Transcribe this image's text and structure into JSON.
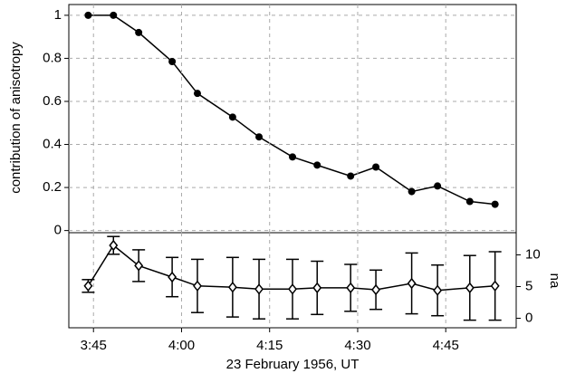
{
  "chart_data": [
    {
      "type": "line",
      "ylabel": "contribution of anisotropy",
      "x": [
        224.1,
        228.4,
        232.7,
        238.4,
        242.7,
        248.7,
        253.2,
        258.9,
        263.1,
        268.8,
        273.1,
        279.2,
        283.6,
        289.1,
        293.4
      ],
      "xlim": [
        220.8,
        297
      ],
      "ylim": [
        -0.01,
        1.05
      ],
      "yticks": [
        0,
        0.2,
        0.4,
        0.6,
        0.8,
        1
      ],
      "grid": true,
      "series": [
        {
          "color": "#000000",
          "marker": "circle",
          "values": [
            1,
            1,
            0.92,
            0.785,
            0.637,
            0.527,
            0.435,
            0.342,
            0.304,
            0.253,
            0.295,
            0.181,
            0.207,
            0.135,
            0.122
          ]
        }
      ]
    },
    {
      "type": "line",
      "xlabel": "23 February 1956, UT",
      "y2label": "na",
      "x": [
        224.1,
        228.4,
        232.7,
        238.4,
        242.7,
        248.7,
        253.2,
        258.9,
        263.1,
        268.8,
        273.1,
        279.2,
        283.6,
        289.1,
        293.4
      ],
      "xlim": [
        220.8,
        297
      ],
      "xticks": [
        {
          "value": 225,
          "label": "3:45"
        },
        {
          "value": 240,
          "label": "4:00"
        },
        {
          "value": 255,
          "label": "4:15"
        },
        {
          "value": 270,
          "label": "4:30"
        },
        {
          "value": 285,
          "label": "4:45"
        }
      ],
      "y2lim": [
        -1.5,
        13.5
      ],
      "y2ticks": [
        0,
        5,
        10
      ],
      "grid": true,
      "series": [
        {
          "color": "#000000",
          "marker": "diamond",
          "axis": "y2",
          "values": [
            5.1,
            11.5,
            8.3,
            6.5,
            5.1,
            4.9,
            4.6,
            4.6,
            4.8,
            4.8,
            4.5,
            5.5,
            4.4,
            4.8,
            5.1
          ],
          "errors": [
            1.0,
            1.4,
            2.5,
            3.1,
            4.2,
            4.7,
            4.7,
            4.7,
            4.2,
            3.7,
            3.1,
            4.8,
            4.0,
            5.1,
            5.4
          ]
        }
      ]
    }
  ]
}
